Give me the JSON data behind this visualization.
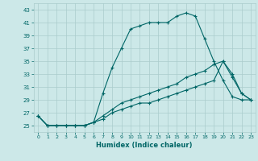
{
  "xlabel": "Humidex (Indice chaleur)",
  "bg_color": "#cce8e8",
  "line_color": "#006666",
  "grid_color": "#aacccc",
  "ylim": [
    24,
    44
  ],
  "xlim": [
    -0.5,
    23.5
  ],
  "yticks": [
    25,
    27,
    29,
    31,
    33,
    35,
    37,
    39,
    41,
    43
  ],
  "xticks": [
    0,
    1,
    2,
    3,
    4,
    5,
    6,
    7,
    8,
    9,
    10,
    11,
    12,
    13,
    14,
    15,
    16,
    17,
    18,
    19,
    20,
    21,
    22,
    23
  ],
  "line1_x": [
    0,
    1,
    2,
    3,
    4,
    5,
    6,
    7,
    8,
    9,
    10,
    11,
    12,
    13,
    14,
    15,
    16,
    17,
    18,
    19,
    20,
    21,
    22,
    23
  ],
  "line1_y": [
    26.5,
    25.0,
    25.0,
    25.0,
    25.0,
    25.0,
    25.5,
    30.0,
    34.0,
    37.0,
    40.0,
    40.5,
    41.0,
    41.0,
    41.0,
    42.0,
    42.5,
    42.0,
    38.5,
    35.0,
    32.0,
    29.5,
    29.0,
    29.0
  ],
  "line2_x": [
    0,
    1,
    2,
    3,
    4,
    5,
    6,
    7,
    8,
    9,
    10,
    11,
    12,
    13,
    14,
    15,
    16,
    17,
    18,
    19,
    20,
    21,
    22,
    23
  ],
  "line2_y": [
    26.5,
    25.0,
    25.0,
    25.0,
    25.0,
    25.0,
    25.5,
    26.5,
    27.5,
    28.5,
    29.0,
    29.5,
    30.0,
    30.5,
    31.0,
    31.5,
    32.5,
    33.0,
    33.5,
    34.5,
    35.0,
    32.5,
    30.0,
    29.0
  ],
  "line3_x": [
    0,
    1,
    2,
    3,
    4,
    5,
    6,
    7,
    8,
    9,
    10,
    11,
    12,
    13,
    14,
    15,
    16,
    17,
    18,
    19,
    20,
    21,
    22,
    23
  ],
  "line3_y": [
    26.5,
    25.0,
    25.0,
    25.0,
    25.0,
    25.0,
    25.5,
    26.0,
    27.0,
    27.5,
    28.0,
    28.5,
    28.5,
    29.0,
    29.5,
    30.0,
    30.5,
    31.0,
    31.5,
    32.0,
    35.0,
    33.0,
    30.0,
    29.0
  ]
}
